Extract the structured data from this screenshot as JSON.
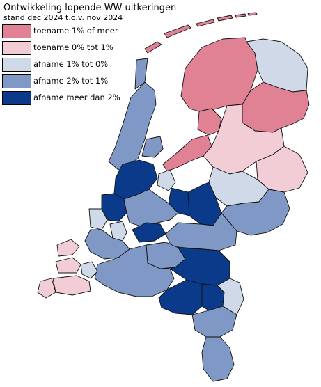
{
  "title": "Ontwikkeling lopende WW-uitkeringen",
  "subtitle": "stand dec 2024 t.o.v. nov 2024",
  "legend": {
    "items": [
      {
        "label": "toename 1% of meer",
        "color": "#e08294"
      },
      {
        "label": "toename 0% tot 1%",
        "color": "#f3cdd6"
      },
      {
        "label": "afname 1% tot 0%",
        "color": "#cfd9e8"
      },
      {
        "label": "afname 2% tot 1%",
        "color": "#7f98c5"
      },
      {
        "label": "afname meer dan 2%",
        "color": "#0b3a8a"
      }
    ]
  }
}
